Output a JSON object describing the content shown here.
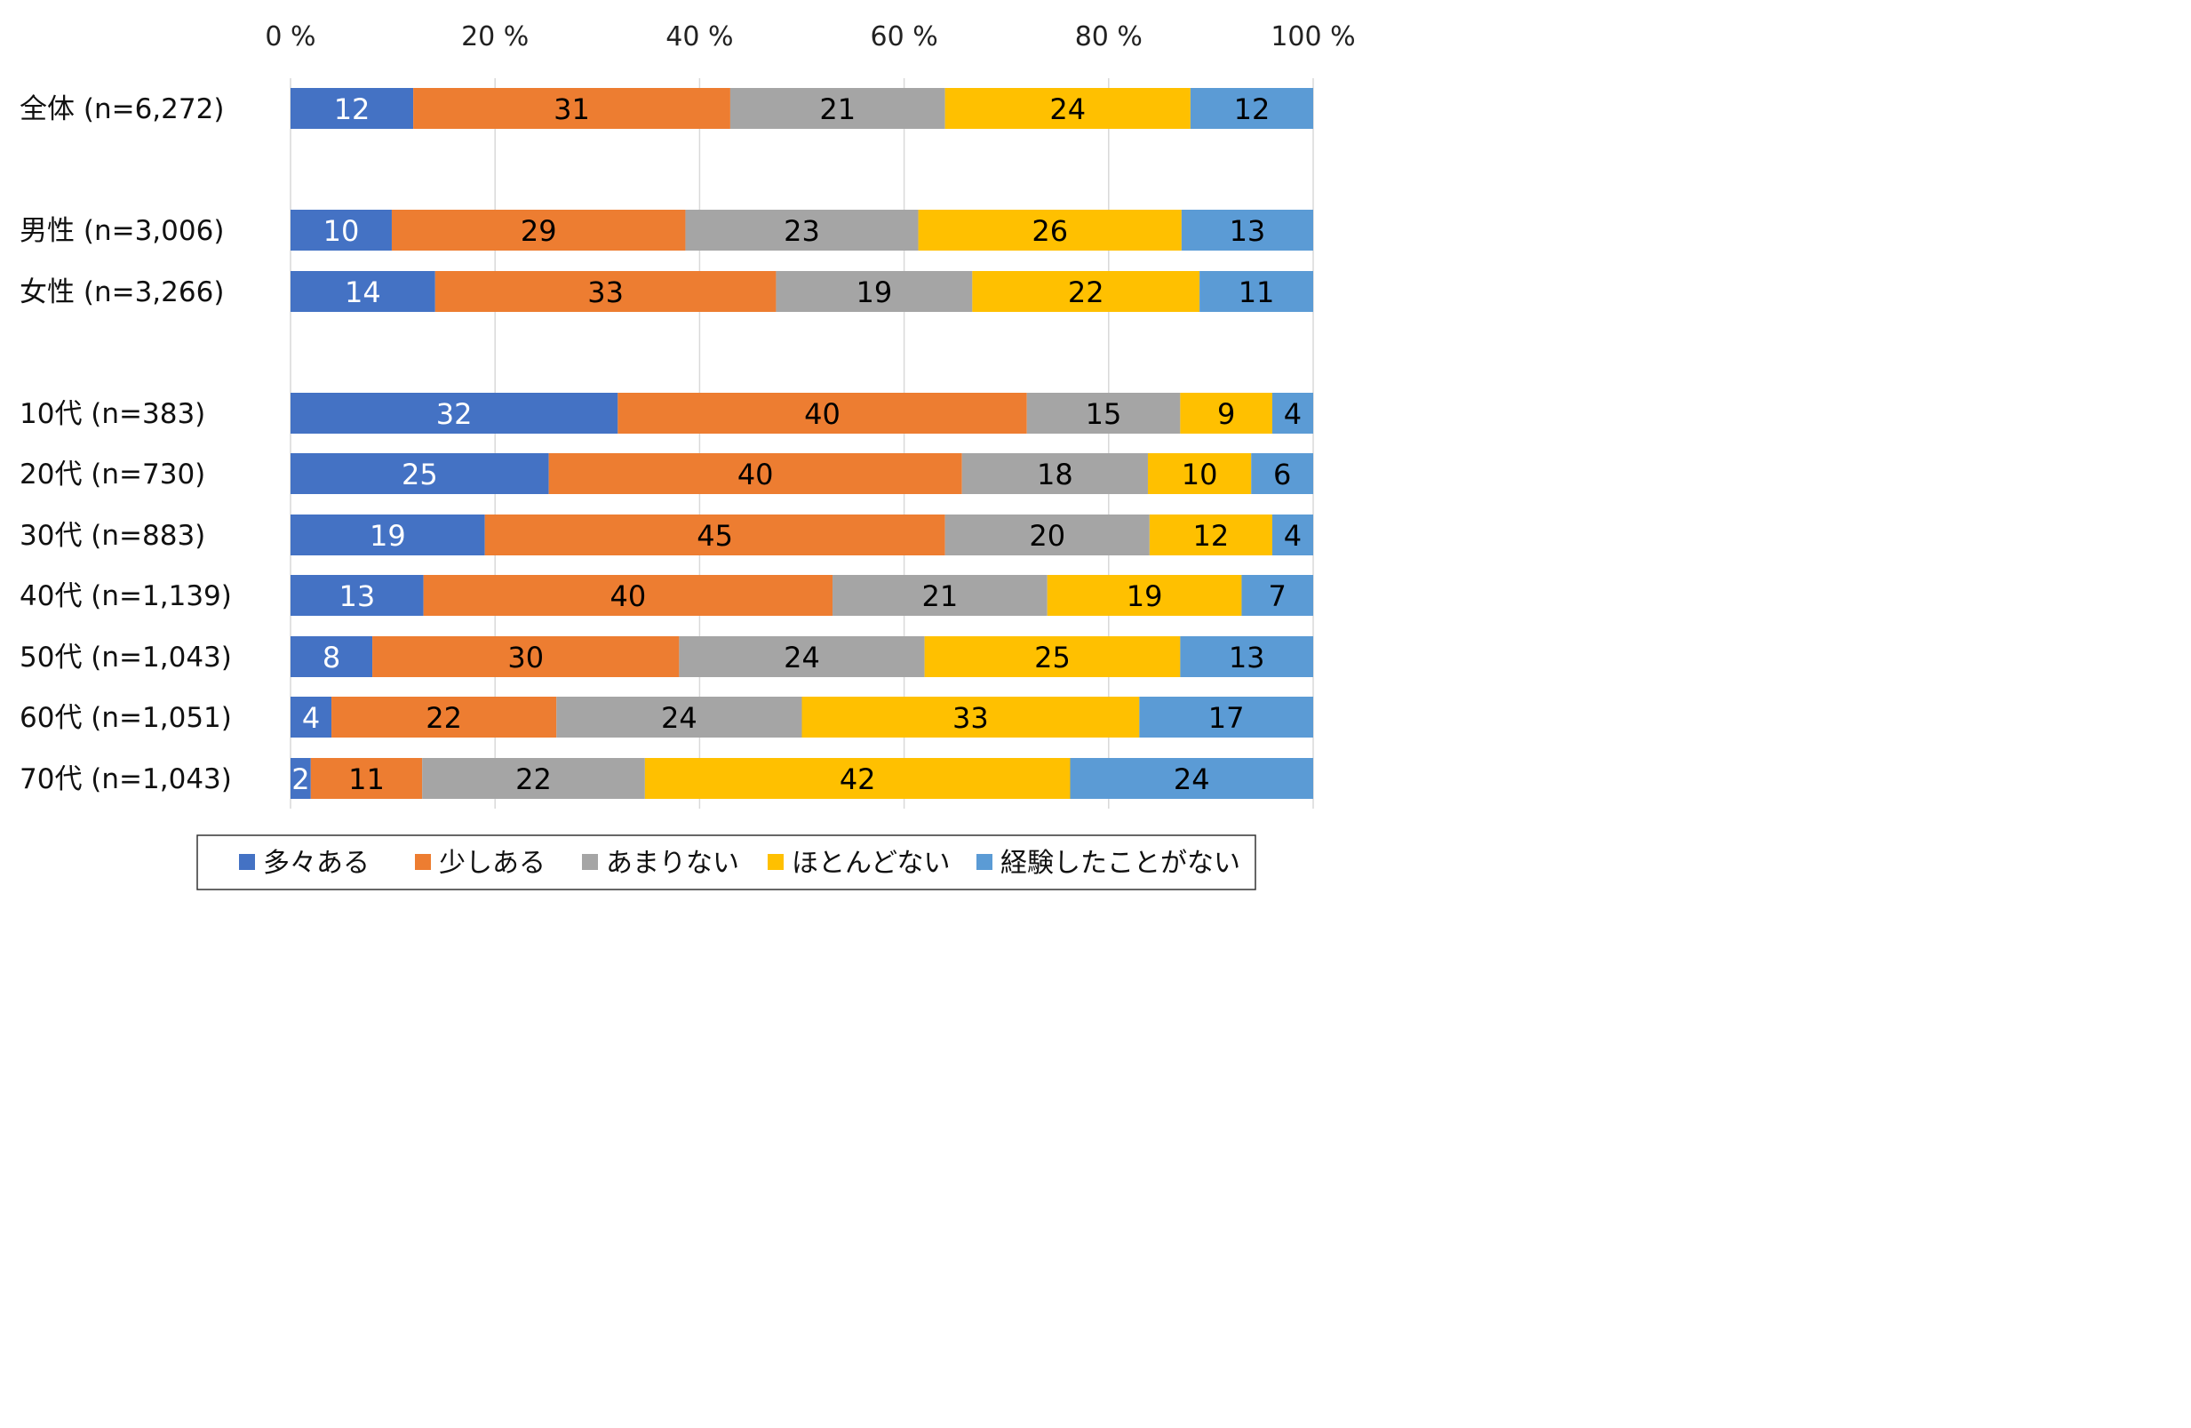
{
  "chart_data": {
    "type": "bar",
    "orientation": "horizontal",
    "stacked": "percent",
    "xlim": [
      0,
      100
    ],
    "x_ticks": [
      "0 %",
      "20 %",
      "40 %",
      "60 %",
      "80 %",
      "100 %"
    ],
    "x_tick_values": [
      0,
      20,
      40,
      60,
      80,
      100
    ],
    "grid": true,
    "legend_position": "bottom",
    "categories": [
      "全体 (n=6,272)",
      "男性 (n=3,006)",
      "女性 (n=3,266)",
      "10代 (n=383)",
      "20代 (n=730)",
      "30代 (n=883)",
      "40代 (n=1,139)",
      "50代 (n=1,043)",
      "60代 (n=1,051)",
      "70代 (n=1,043)"
    ],
    "series": [
      {
        "name": "多々ある",
        "color": "#4472C4",
        "label_color": "#ffffff",
        "values": [
          12,
          10,
          14,
          32,
          25,
          19,
          13,
          8,
          4,
          2
        ]
      },
      {
        "name": "少しある",
        "color": "#ED7D31",
        "label_color": "#000000",
        "values": [
          31,
          29,
          33,
          40,
          40,
          45,
          40,
          30,
          22,
          11
        ]
      },
      {
        "name": "あまりない",
        "color": "#A5A5A5",
        "label_color": "#000000",
        "values": [
          21,
          23,
          19,
          15,
          18,
          20,
          21,
          24,
          24,
          22
        ]
      },
      {
        "name": "ほとんどない",
        "color": "#FFC000",
        "label_color": "#000000",
        "values": [
          24,
          26,
          22,
          9,
          10,
          12,
          19,
          25,
          33,
          42
        ]
      },
      {
        "name": "経験したことがない",
        "color": "#5B9BD5",
        "label_color": "#000000",
        "values": [
          12,
          13,
          11,
          4,
          6,
          4,
          7,
          13,
          17,
          24
        ]
      }
    ]
  }
}
